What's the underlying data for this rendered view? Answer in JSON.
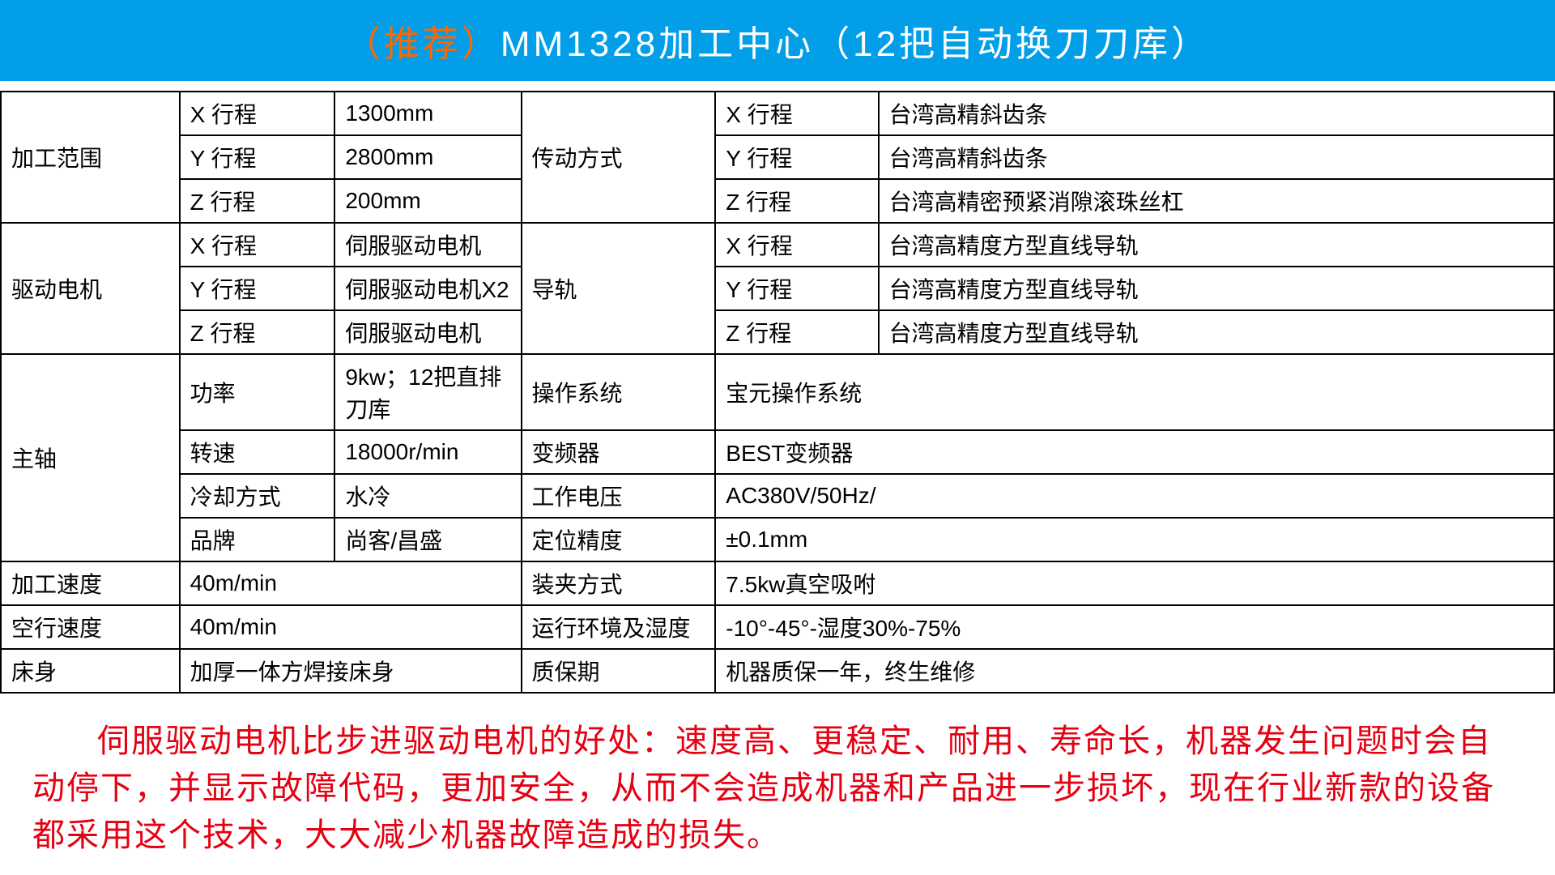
{
  "header": {
    "recommend": "（推荐）",
    "title": "MM1328加工中心（12把自动换刀刀库）"
  },
  "table": {
    "rows": [
      {
        "leftLabel": "加工范围",
        "leftLabelRowspan": 3,
        "subLabel": "X 行程",
        "leftValue": "1300mm",
        "rightLabel": "传动方式",
        "rightLabelRowspan": 3,
        "rightSub": "X 行程",
        "rightValue": "台湾高精斜齿条"
      },
      {
        "subLabel": "Y 行程",
        "leftValue": "2800mm",
        "rightSub": "Y 行程",
        "rightValue": "台湾高精斜齿条"
      },
      {
        "subLabel": "Z 行程",
        "leftValue": "200mm",
        "rightSub": "Z 行程",
        "rightValue": "台湾高精密预紧消隙滚珠丝杠"
      },
      {
        "leftLabel": "驱动电机",
        "leftLabelRowspan": 3,
        "subLabel": "X 行程",
        "leftValue": "伺服驱动电机",
        "rightLabel": "导轨",
        "rightLabelRowspan": 3,
        "rightSub": "X 行程",
        "rightValue": "台湾高精度方型直线导轨"
      },
      {
        "subLabel": "Y 行程",
        "leftValue": "伺服驱动电机X2",
        "rightSub": "Y 行程",
        "rightValue": "台湾高精度方型直线导轨"
      },
      {
        "subLabel": "Z 行程",
        "leftValue": "伺服驱动电机",
        "rightSub": "Z 行程",
        "rightValue": "台湾高精度方型直线导轨"
      },
      {
        "leftLabel": "主轴",
        "leftLabelRowspan": 4,
        "subLabel": "功率",
        "leftValue": "9kw；12把直排刀库",
        "rightLabel": "操作系统",
        "rightValueMerged": "宝元操作系统"
      },
      {
        "subLabel": "转速",
        "leftValue": "18000r/min",
        "rightLabel": "变频器",
        "rightValueMerged": "BEST变频器"
      },
      {
        "subLabel": "冷却方式",
        "leftValue": "水冷",
        "rightLabel": "工作电压",
        "rightValueMerged": "AC380V/50Hz/"
      },
      {
        "subLabel": "品牌",
        "leftValue": "尚客/昌盛",
        "rightLabel": "定位精度",
        "rightValueMerged": "±0.1mm"
      },
      {
        "leftLabel": "加工速度",
        "leftValueMerged": "40m/min",
        "rightLabel": "装夹方式",
        "rightValueMerged": "7.5kw真空吸咐"
      },
      {
        "leftLabel": "空行速度",
        "leftValueMerged": "40m/min",
        "rightLabel": "运行环境及湿度",
        "rightValueMerged": "-10°-45°-湿度30%-75%"
      },
      {
        "leftLabel": "床身",
        "leftValueMerged": "加厚一体方焊接床身",
        "rightLabel": "质保期",
        "rightValueMerged": "机器质保一年，终生维修"
      }
    ]
  },
  "footer": {
    "text": "伺服驱动电机比步进驱动电机的好处：速度高、更稳定、耐用、寿命长，机器发生问题时会自动停下，并显示故障代码，更加安全，从而不会造成机器和产品进一步损坏，现在行业新款的设备都采用这个技术，大大减少机器故障造成的损失。"
  },
  "colors": {
    "headerBg": "#029fe8",
    "headerText": "#ffffff",
    "recommendText": "#ff6600",
    "borderColor": "#000000",
    "footerText": "#e50012"
  }
}
